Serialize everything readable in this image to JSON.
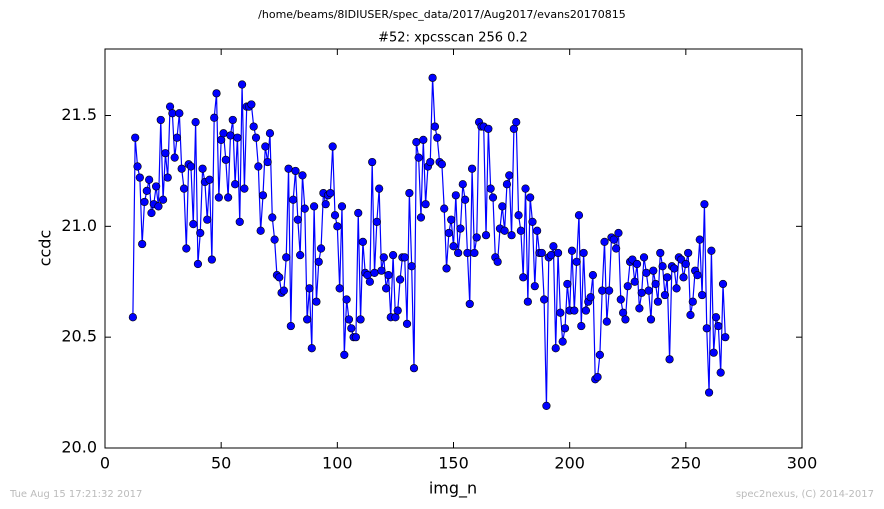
{
  "chart_data": {
    "type": "line",
    "header": "/home/beams/8IDIUSER/spec_data/2017/Aug2017/evans20170815",
    "title": "#52: xpcsscan 256 0.2",
    "x_label": "img_n",
    "y_label": "ccdc",
    "footer_left": "Tue Aug 15 17:21:32 2017",
    "footer_right": "spec2nexus, (C) 2014-2017",
    "color": "#0000ff",
    "xlim": [
      0,
      300
    ],
    "xticks": [
      0,
      50,
      100,
      150,
      200,
      250,
      300
    ],
    "ylim": [
      20,
      21.8
    ],
    "yticks": [
      {
        "value": 20,
        "label": "20.0"
      },
      20.5,
      {
        "value": 21,
        "label": "21.0"
      },
      21.5
    ],
    "x": [
      12,
      13,
      14,
      15,
      16,
      17,
      18,
      19,
      20,
      21,
      22,
      23,
      24,
      25,
      26,
      27,
      28,
      29,
      30,
      31,
      32,
      33,
      34,
      35,
      36,
      37,
      38,
      39,
      40,
      41,
      42,
      43,
      44,
      45,
      46,
      47,
      48,
      49,
      50,
      51,
      52,
      53,
      54,
      55,
      56,
      57,
      58,
      59,
      60,
      61,
      62,
      63,
      64,
      65,
      66,
      67,
      68,
      69,
      70,
      71,
      72,
      73,
      74,
      75,
      76,
      77,
      78,
      79,
      80,
      81,
      82,
      83,
      84,
      85,
      86,
      87,
      88,
      89,
      90,
      91,
      92,
      93,
      94,
      95,
      96,
      97,
      98,
      99,
      100,
      101,
      102,
      103,
      104,
      105,
      106,
      107,
      108,
      109,
      110,
      111,
      112,
      113,
      114,
      115,
      116,
      117,
      118,
      119,
      120,
      121,
      122,
      123,
      124,
      125,
      126,
      127,
      128,
      129,
      130,
      131,
      132,
      133,
      134,
      135,
      136,
      137,
      138,
      139,
      140,
      141,
      142,
      143,
      144,
      145,
      146,
      147,
      148,
      149,
      150,
      151,
      152,
      153,
      154,
      155,
      156,
      157,
      158,
      159,
      160,
      161,
      162,
      163,
      164,
      165,
      166,
      167,
      168,
      169,
      170,
      171,
      172,
      173,
      174,
      175,
      176,
      177,
      178,
      179,
      180,
      181,
      182,
      183,
      184,
      185,
      186,
      187,
      188,
      189,
      190,
      191,
      192,
      193,
      194,
      195,
      196,
      197,
      198,
      199,
      200,
      201,
      202,
      203,
      204,
      205,
      206,
      207,
      208,
      209,
      210,
      211,
      212,
      213,
      214,
      215,
      216,
      217,
      218,
      219,
      220,
      221,
      222,
      223,
      224,
      225,
      226,
      227,
      228,
      229,
      230,
      231,
      232,
      233,
      234,
      235,
      236,
      237,
      238,
      239,
      240,
      241,
      242,
      243,
      244,
      245,
      246,
      247,
      248,
      249,
      250,
      251,
      252,
      253,
      254,
      255,
      256,
      257,
      258,
      259,
      260,
      261,
      262,
      263,
      264,
      265,
      266,
      267
    ],
    "values": [
      20.59,
      21.4,
      21.27,
      21.22,
      20.92,
      21.11,
      21.16,
      21.21,
      21.06,
      21.1,
      21.18,
      21.09,
      21.48,
      21.12,
      21.33,
      21.22,
      21.54,
      21.51,
      21.31,
      21.4,
      21.51,
      21.26,
      21.17,
      20.9,
      21.28,
      21.27,
      21.01,
      21.47,
      20.83,
      20.97,
      21.26,
      21.2,
      21.03,
      21.21,
      20.85,
      21.49,
      21.6,
      21.13,
      21.39,
      21.42,
      21.3,
      21.13,
      21.41,
      21.48,
      21.19,
      21.4,
      21.02,
      21.64,
      21.17,
      21.54,
      21.54,
      21.55,
      21.45,
      21.4,
      21.27,
      20.98,
      21.14,
      21.36,
      21.29,
      21.42,
      21.04,
      20.94,
      20.78,
      20.77,
      20.7,
      20.71,
      20.86,
      21.26,
      20.55,
      21.12,
      21.25,
      21.03,
      20.87,
      21.23,
      21.08,
      20.58,
      20.72,
      20.45,
      21.09,
      20.66,
      20.84,
      20.9,
      21.15,
      21.1,
      21.14,
      21.15,
      21.36,
      21.05,
      21.0,
      20.72,
      21.09,
      20.42,
      20.67,
      20.58,
      20.54,
      20.5,
      20.5,
      21.06,
      20.58,
      20.93,
      20.79,
      20.78,
      20.75,
      21.29,
      20.79,
      21.02,
      21.17,
      20.8,
      20.86,
      20.72,
      20.78,
      20.59,
      20.87,
      20.59,
      20.62,
      20.76,
      20.86,
      20.86,
      20.56,
      21.15,
      20.82,
      20.36,
      21.38,
      21.31,
      21.04,
      21.39,
      21.1,
      21.27,
      21.29,
      21.67,
      21.45,
      21.4,
      21.29,
      21.28,
      21.08,
      20.81,
      20.97,
      21.03,
      20.91,
      21.14,
      20.88,
      20.99,
      21.19,
      21.12,
      20.88,
      20.65,
      21.26,
      20.88,
      20.95,
      21.47,
      21.45,
      21.45,
      20.96,
      21.44,
      21.17,
      21.13,
      20.86,
      20.84,
      20.99,
      21.09,
      20.98,
      21.19,
      21.23,
      20.96,
      21.44,
      21.47,
      21.05,
      20.98,
      20.77,
      21.17,
      20.66,
      21.13,
      21.02,
      20.73,
      20.98,
      20.88,
      20.88,
      20.67,
      20.19,
      20.86,
      20.87,
      20.91,
      20.45,
      20.88,
      20.61,
      20.48,
      20.54,
      20.74,
      20.62,
      20.89,
      20.62,
      20.84,
      21.05,
      20.55,
      20.88,
      20.62,
      20.66,
      20.68,
      20.78,
      20.31,
      20.32,
      20.42,
      20.71,
      20.93,
      20.57,
      20.71,
      20.95,
      20.94,
      20.9,
      20.97,
      20.67,
      20.61,
      20.58,
      20.73,
      20.84,
      20.85,
      20.75,
      20.83,
      20.63,
      20.7,
      20.86,
      20.79,
      20.71,
      20.58,
      20.8,
      20.74,
      20.66,
      20.88,
      20.82,
      20.69,
      20.77,
      20.4,
      20.82,
      20.81,
      20.72,
      20.86,
      20.85,
      20.77,
      20.83,
      20.88,
      20.6,
      20.66,
      20.8,
      20.78,
      20.94,
      20.69,
      21.1,
      20.54,
      20.25,
      20.89,
      20.43,
      20.59,
      20.55,
      20.34,
      20.74,
      20.5
    ]
  }
}
